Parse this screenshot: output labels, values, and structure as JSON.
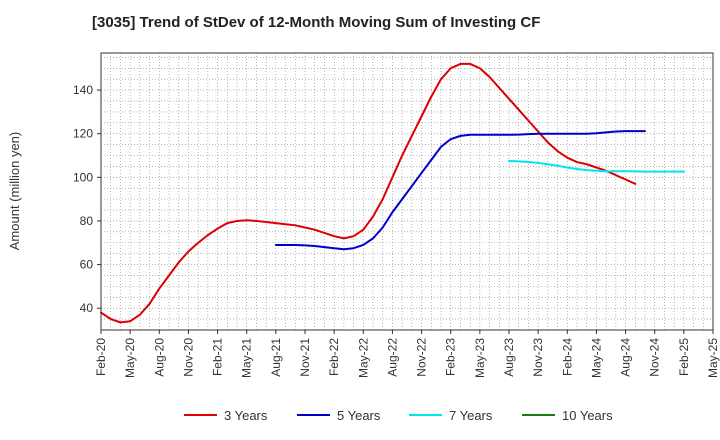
{
  "chart_data": {
    "type": "line",
    "title": "[3035]  Trend of StDev of 12-Month Moving Sum of Investing CF",
    "xlabel": "",
    "ylabel": "Amount (million yen)",
    "ylim": [
      30,
      157
    ],
    "yticks": [
      40,
      60,
      80,
      100,
      120,
      140
    ],
    "x_tick_labels": [
      "Feb-20",
      "May-20",
      "Aug-20",
      "Nov-20",
      "Feb-21",
      "May-21",
      "Aug-21",
      "Nov-21",
      "Feb-22",
      "May-22",
      "Aug-22",
      "Nov-22",
      "Feb-23",
      "May-23",
      "Aug-23",
      "Nov-23",
      "Feb-24",
      "May-24",
      "Aug-24",
      "Nov-24",
      "Feb-25",
      "May-25"
    ],
    "grid": true,
    "legend_position": "bottom",
    "x_start": "2020-02",
    "series": [
      {
        "name": "3 Years",
        "color": "#dd0000",
        "start": "2020-02",
        "values": [
          38,
          35,
          33.5,
          34,
          37,
          42,
          49,
          55,
          61,
          66,
          70,
          73.5,
          76.5,
          79,
          80,
          80.3,
          80,
          79.5,
          79,
          78.5,
          78,
          77,
          76,
          74.5,
          73,
          72,
          73,
          76,
          82,
          90,
          100,
          110,
          119,
          128,
          137,
          145,
          150,
          152,
          152,
          150,
          146,
          141,
          136,
          131,
          126,
          121,
          116,
          112,
          109,
          107,
          106,
          104.5,
          103,
          101,
          99,
          97
        ]
      },
      {
        "name": "5 Years",
        "color": "#0000cc",
        "start": "2021-08",
        "values": [
          69,
          69,
          69,
          68.8,
          68.5,
          68,
          67.5,
          67,
          67.5,
          69,
          72,
          77,
          84,
          90,
          96,
          102,
          108,
          114,
          117.5,
          119,
          119.5,
          119.5,
          119.5,
          119.5,
          119.5,
          119.6,
          119.8,
          120,
          120,
          120,
          120,
          120,
          120,
          120.2,
          120.6,
          121,
          121.2,
          121.2,
          121.2
        ]
      },
      {
        "name": "7 Years",
        "color": "#00e5ee",
        "start": "2023-08",
        "values": [
          107.5,
          107.3,
          107,
          106.6,
          106,
          105.3,
          104.5,
          103.8,
          103.3,
          103,
          102.8,
          102.8,
          102.8,
          102.7,
          102.6,
          102.6,
          102.6,
          102.6,
          102.6
        ]
      },
      {
        "name": "10 Years",
        "color": "#1a7a1a",
        "start": "2025-02",
        "values": []
      }
    ]
  }
}
